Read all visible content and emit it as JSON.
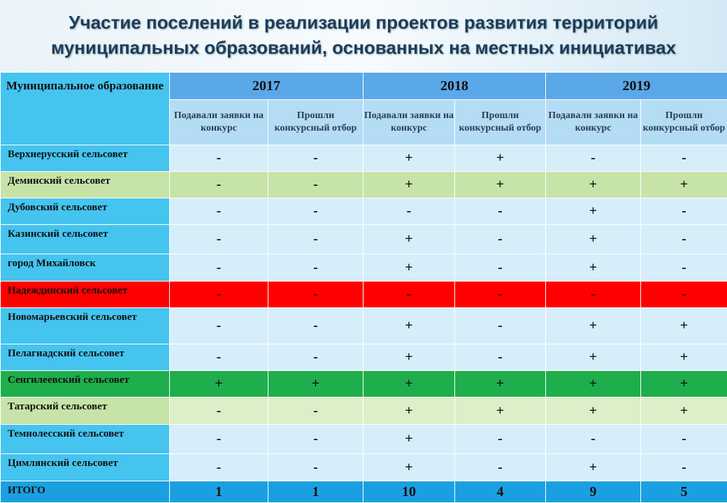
{
  "title": {
    "line1": "Участие поселений в реализации проектов развития территорий",
    "line2": "муниципальных образований, основанных на местных инициативах"
  },
  "table": {
    "corner": "Муниципальное образование",
    "years": [
      "2017",
      "2018",
      "2019"
    ],
    "subheaders": [
      "Подавали заявки на конкурс",
      "Прошли конкурсный отбор",
      "Подавали заявки на конкурс",
      "Прошли конкурсный отбор",
      "Подавали заявки на конкурс",
      "Прошли конкурсный отбор"
    ],
    "rows": [
      [
        "Верхнерусский сельсовет",
        "-",
        "-",
        "+",
        "+",
        "-",
        "-"
      ],
      [
        "Деминский сельсовет",
        "-",
        "-",
        "+",
        "+",
        "+",
        "+"
      ],
      [
        "Дубовский сельсовет",
        "-",
        "-",
        "-",
        "-",
        "+",
        "-"
      ],
      [
        "Казинский сельсовет",
        "-",
        "-",
        "+",
        "-",
        "+",
        "-"
      ],
      [
        "город Михайловск",
        "-",
        "-",
        "+",
        "-",
        "+",
        "-"
      ],
      [
        "Надеждинский сельсовет",
        "-",
        "-",
        "-",
        "-",
        "-",
        "-"
      ],
      [
        "Новомарьевский сельсовет",
        "-",
        "-",
        "+",
        "-",
        "+",
        "+"
      ],
      [
        "Пелагиадский сельсовет",
        "-",
        "-",
        "+",
        "-",
        "+",
        "+"
      ],
      [
        "Сенгилеевский сельсовет",
        "+",
        "+",
        "+",
        "+",
        "+",
        "+"
      ],
      [
        "Татарский сельсовет",
        "-",
        "-",
        "+",
        "+",
        "+",
        "+"
      ],
      [
        "Темнолесский сельсовет",
        "-",
        "-",
        "+",
        "-",
        "-",
        "-"
      ],
      [
        "Цимлянский сельсовет",
        "-",
        "-",
        "+",
        "-",
        "+",
        "-"
      ]
    ],
    "total": [
      "ИТОГО",
      "1",
      "1",
      "10",
      "4",
      "9",
      "5"
    ]
  }
}
